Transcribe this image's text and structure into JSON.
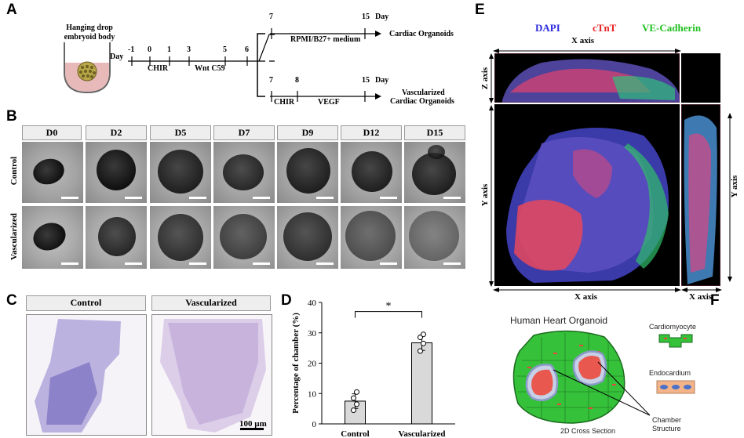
{
  "panels": [
    "A",
    "B",
    "C",
    "D",
    "E",
    "F"
  ],
  "panel_a": {
    "embryoid_label": "Hanging drop embryoid body",
    "day_word": "Day",
    "main_ticks": [
      "-1",
      "0",
      "1",
      "3",
      "5",
      "6"
    ],
    "main_intervals": [
      "CHIR",
      "Wnt C59"
    ],
    "branch_day_word": "Day",
    "top_branch": {
      "ticks": [
        "7",
        "15"
      ],
      "medium": "RPMI/B27+ medium",
      "result": "Cardiac Organoids"
    },
    "bottom_branch": {
      "ticks": [
        "7",
        "8",
        "15"
      ],
      "intervals": [
        "CHIR",
        "VEGF"
      ],
      "result_line1": "Vascularized",
      "result_line2": "Cardiac Organoids"
    }
  },
  "panel_b": {
    "days": [
      "D0",
      "D2",
      "D5",
      "D7",
      "D9",
      "D12",
      "D15"
    ],
    "row_labels": [
      "Control",
      "Vascularized"
    ]
  },
  "panel_c": {
    "headers": [
      "Control",
      "Vascularized"
    ],
    "scale_label": "100 µm"
  },
  "panel_e": {
    "stains": [
      "DAPI",
      "cTnT",
      "VE-Cadherin"
    ],
    "stain_colors": [
      "#2a2ae0",
      "#e82020",
      "#22c022"
    ],
    "x_axis": "X axis",
    "y_axis": "Y axis",
    "z_axis": "Z axis"
  },
  "panel_f": {
    "title": "Human Heart Organoid",
    "legend": [
      "Cardiomyocyte",
      "Endocardium"
    ],
    "chamber_line1": "Chamber",
    "chamber_line2": "Structure",
    "caption": "2D Cross Section"
  },
  "chart_data": {
    "type": "bar",
    "categories": [
      "Control",
      "Vascularized"
    ],
    "values": [
      7.5,
      26.7
    ],
    "errors": [
      2.4,
      2.5
    ],
    "points": [
      [
        4.5,
        6.5,
        8.5,
        10.5
      ],
      [
        24.0,
        26.5,
        28.5,
        29.5
      ]
    ],
    "significance": "*",
    "ylabel": "Percentage of chamber (%)",
    "ylim": [
      0,
      40
    ],
    "yticks": [
      0,
      10,
      20,
      30,
      40
    ],
    "bar_color": "#d9d9d9"
  }
}
